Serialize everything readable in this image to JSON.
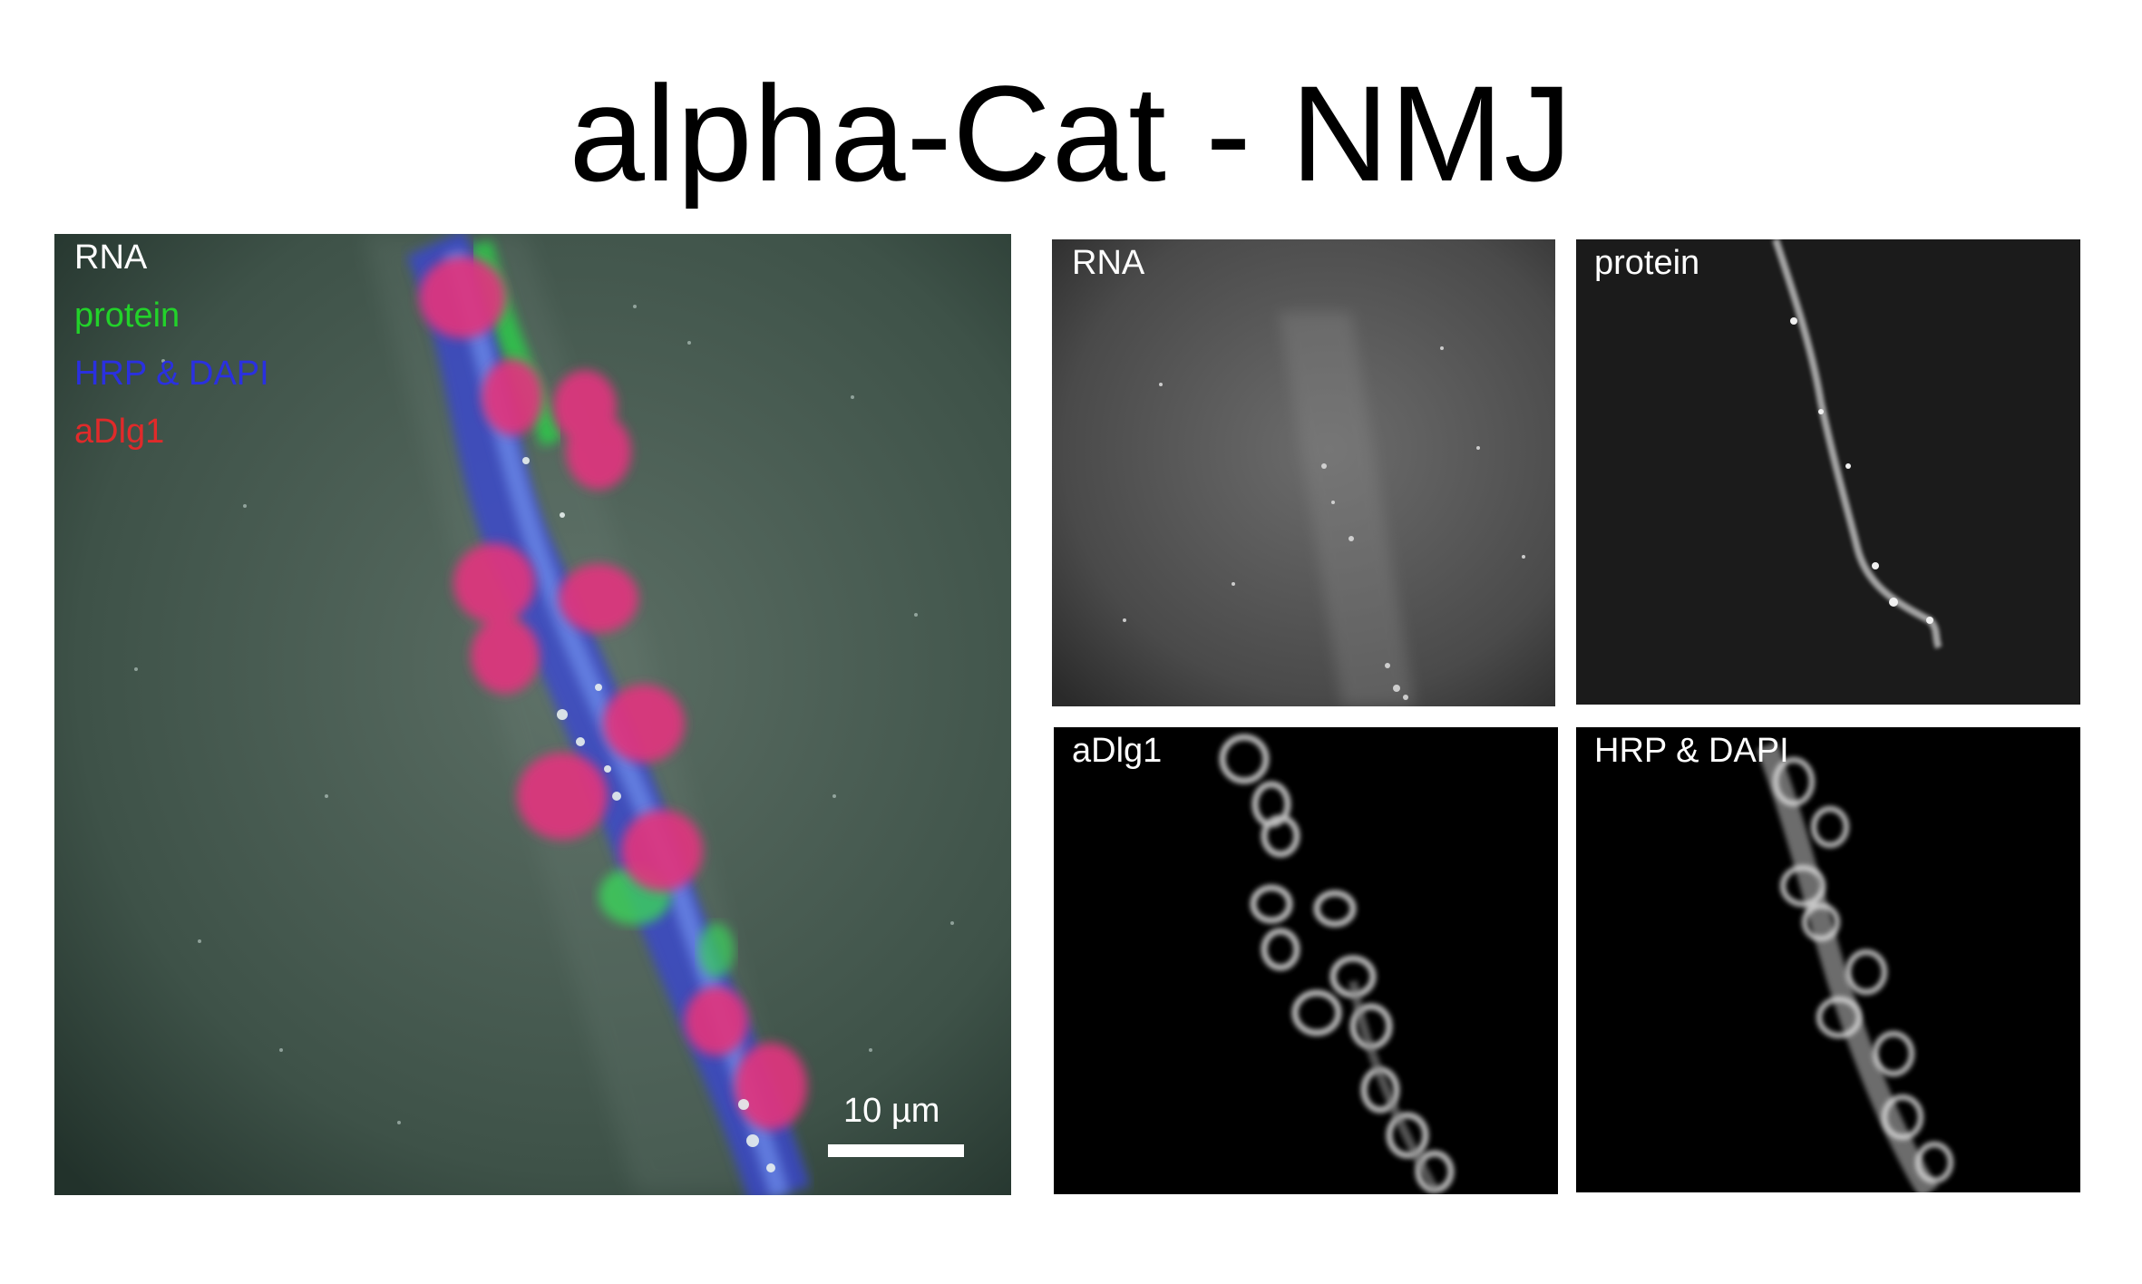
{
  "title": "alpha-Cat - NMJ",
  "merge_panel": {
    "legend": [
      {
        "text": "RNA",
        "color": "#ffffff"
      },
      {
        "text": "protein",
        "color": "#22d22a"
      },
      {
        "text": "HRP & DAPI",
        "color": "#2a30e0"
      },
      {
        "text": "aDlg1",
        "color": "#e02a2a"
      }
    ],
    "scale_bar_label": "10 µm"
  },
  "channel_panels": {
    "rna": "RNA",
    "protein": "protein",
    "adlg1": "aDlg1",
    "hrp_dapi": "HRP & DAPI"
  },
  "colors": {
    "background": "#ffffff",
    "merge_bg": "#33453d",
    "rna": "#ffffff",
    "protein": "#22d22a",
    "hrp_dapi": "#2a30e0",
    "adlg1": "#e02a2a"
  }
}
